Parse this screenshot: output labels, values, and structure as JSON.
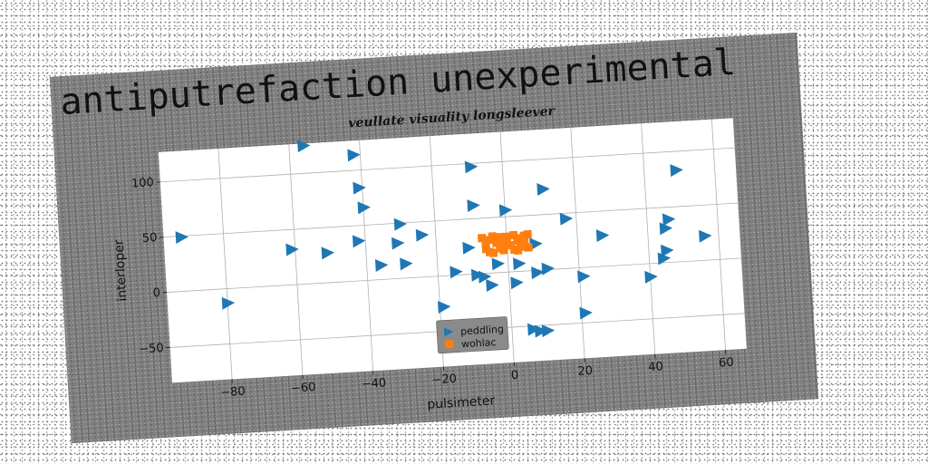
{
  "main_title": "antiputrefaction unexperimental",
  "chart_data": {
    "type": "scatter",
    "title": "veullate visuality longsleever",
    "xlabel": "pulsimeter",
    "ylabel": "interloper",
    "xlim": [
      -97,
      66
    ],
    "ylim": [
      -82,
      127
    ],
    "xticks": [
      -80,
      -60,
      -40,
      -20,
      0,
      20,
      40,
      60
    ],
    "yticks": [
      -50,
      0,
      50,
      100
    ],
    "grid": true,
    "legend_position": "lower center",
    "series": [
      {
        "name": "peddling",
        "marker": "triangle-right",
        "color": "#1f77b4",
        "points": [
          [
            -92,
            49
          ],
          [
            -80,
            -13
          ],
          [
            -61,
            32
          ],
          [
            -56,
            125
          ],
          [
            -51,
            27
          ],
          [
            -42,
            114
          ],
          [
            -42,
            36
          ],
          [
            -41,
            84
          ],
          [
            -40,
            66
          ],
          [
            -36,
            13
          ],
          [
            -30,
            49
          ],
          [
            -31,
            32
          ],
          [
            -29,
            13
          ],
          [
            -24,
            38
          ],
          [
            -19,
            -28
          ],
          [
            -15,
            3
          ],
          [
            -11,
            24
          ],
          [
            -9,
            97
          ],
          [
            -9,
            62
          ],
          [
            -9,
            -1
          ],
          [
            -7,
            -3
          ],
          [
            -5,
            -11
          ],
          [
            -3,
            8
          ],
          [
            0,
            56
          ],
          [
            2,
            -10
          ],
          [
            3,
            7
          ],
          [
            8,
            24
          ],
          [
            8,
            -2
          ],
          [
            11,
            73
          ],
          [
            11,
            1
          ],
          [
            8,
            -55
          ],
          [
            10,
            -55
          ],
          [
            17,
            45
          ],
          [
            21,
            -8
          ],
          [
            21,
            -41
          ],
          [
            27,
            28
          ],
          [
            40,
            -12
          ],
          [
            44,
            4
          ],
          [
            45,
            11
          ],
          [
            46,
            39
          ],
          [
            45,
            31
          ],
          [
            49,
            83
          ],
          [
            56,
            22
          ],
          [
            6,
            -53
          ]
        ]
      },
      {
        "name": "wohlac",
        "marker": "square",
        "color": "#ff7f0e",
        "points": [
          [
            -7,
            32
          ],
          [
            -6,
            22
          ],
          [
            -5,
            30
          ],
          [
            -4,
            18
          ],
          [
            -3,
            27
          ],
          [
            -2,
            32
          ],
          [
            -1,
            20
          ],
          [
            0,
            28
          ],
          [
            1,
            24
          ],
          [
            2,
            33
          ],
          [
            3,
            19
          ],
          [
            4,
            30
          ],
          [
            5,
            25
          ],
          [
            6,
            33
          ],
          [
            -6,
            27
          ],
          [
            -4,
            33
          ],
          [
            -2,
            22
          ],
          [
            0,
            32
          ],
          [
            2,
            20
          ],
          [
            4,
            22
          ],
          [
            5,
            32
          ],
          [
            -5,
            19
          ],
          [
            -1,
            25
          ],
          [
            3,
            28
          ],
          [
            6,
            21
          ]
        ]
      }
    ]
  }
}
